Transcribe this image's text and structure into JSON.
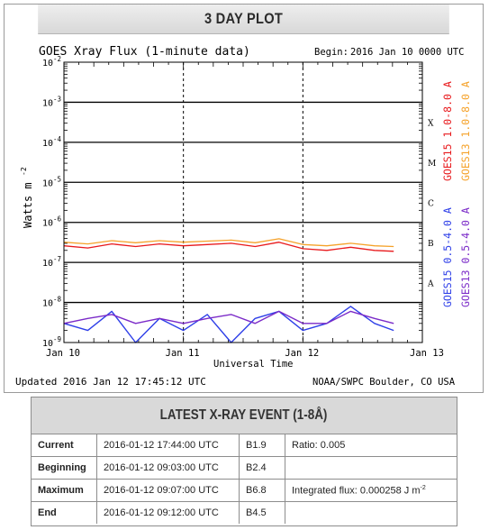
{
  "panel_title": "3 DAY PLOT",
  "plot": {
    "title": "GOES Xray Flux (1-minute data)",
    "begin_label": "Begin:",
    "begin_value": "2016 Jan 10 0000 UTC",
    "ylabel": "Watts m",
    "ylabel_exp": "-2",
    "xlabel": "Universal Time",
    "updated": "Updated 2016 Jan 12 17:45:12 UTC",
    "credit": "NOAA/SWPC Boulder, CO USA",
    "flare_classes": [
      "X",
      "M",
      "C",
      "B",
      "A"
    ],
    "colors": {
      "goes15_long": "#e8191c",
      "goes13_long": "#f5a22a",
      "goes15_short": "#2e3fe8",
      "goes13_short": "#7b2bc8",
      "axis": "#000000"
    }
  },
  "chart_data": {
    "type": "line",
    "title": "GOES Xray Flux (1-minute data)",
    "xlabel": "Universal Time",
    "ylabel": "Watts m-2",
    "yscale": "log",
    "ylim": [
      1e-09,
      0.01
    ],
    "y_ticks": [
      "10-9",
      "10-8",
      "10-7",
      "10-6",
      "10-5",
      "10-4",
      "10-3",
      "10-2"
    ],
    "x_ticks": [
      "Jan 10",
      "Jan 11",
      "Jan 12",
      "Jan 13"
    ],
    "x_range_days": [
      10,
      13
    ],
    "grid": true,
    "series": [
      {
        "name": "GOES15 1.0-8.0 A",
        "color": "#e8191c",
        "x": [
          10.0,
          10.2,
          10.4,
          10.6,
          10.8,
          11.0,
          11.2,
          11.4,
          11.6,
          11.8,
          12.0,
          12.2,
          12.4,
          12.6,
          12.76
        ],
        "y": [
          2.6e-07,
          2.3e-07,
          2.9e-07,
          2.5e-07,
          2.9e-07,
          2.6e-07,
          2.8e-07,
          3e-07,
          2.5e-07,
          3.2e-07,
          2.2e-07,
          2e-07,
          2.4e-07,
          2e-07,
          1.9e-07
        ]
      },
      {
        "name": "GOES13 1.0-8.0 A",
        "color": "#f5a22a",
        "x": [
          10.0,
          10.2,
          10.4,
          10.6,
          10.8,
          11.0,
          11.2,
          11.4,
          11.6,
          11.8,
          12.0,
          12.2,
          12.4,
          12.6,
          12.76
        ],
        "y": [
          3.2e-07,
          2.9e-07,
          3.5e-07,
          3.1e-07,
          3.5e-07,
          3.2e-07,
          3.4e-07,
          3.6e-07,
          3.1e-07,
          3.9e-07,
          2.8e-07,
          2.6e-07,
          3e-07,
          2.6e-07,
          2.5e-07
        ]
      },
      {
        "name": "GOES15 0.5-4.0 A",
        "color": "#2e3fe8",
        "x": [
          10.0,
          10.2,
          10.4,
          10.6,
          10.8,
          11.0,
          11.2,
          11.4,
          11.6,
          11.8,
          12.0,
          12.2,
          12.4,
          12.6,
          12.76
        ],
        "y": [
          3e-09,
          2e-09,
          6e-09,
          1e-09,
          4e-09,
          2e-09,
          5e-09,
          1e-09,
          4e-09,
          6e-09,
          2e-09,
          3e-09,
          8e-09,
          3e-09,
          2e-09
        ]
      },
      {
        "name": "GOES13 0.5-4.0 A",
        "color": "#7b2bc8",
        "x": [
          10.0,
          10.2,
          10.4,
          10.6,
          10.8,
          11.0,
          11.2,
          11.4,
          11.6,
          11.8,
          12.0,
          12.2,
          12.4,
          12.6,
          12.76
        ],
        "y": [
          3e-09,
          4e-09,
          5e-09,
          3e-09,
          4e-09,
          3e-09,
          4e-09,
          5e-09,
          3e-09,
          6e-09,
          3e-09,
          3e-09,
          6e-09,
          4e-09,
          3e-09
        ]
      }
    ]
  },
  "event": {
    "title": "LATEST X-RAY EVENT (1-8Å)",
    "rows": [
      {
        "label": "Current",
        "time": "2016-01-12 17:44:00 UTC",
        "class": "B1.9",
        "extra": "Ratio: 0.005",
        "extra_exp": ""
      },
      {
        "label": "Beginning",
        "time": "2016-01-12 09:03:00 UTC",
        "class": "B2.4",
        "extra": "",
        "extra_exp": ""
      },
      {
        "label": "Maximum",
        "time": "2016-01-12 09:07:00 UTC",
        "class": "B6.8",
        "extra": "Integrated flux: 0.000258 J m",
        "extra_exp": "-2"
      },
      {
        "label": "End",
        "time": "2016-01-12 09:12:00 UTC",
        "class": "B4.5",
        "extra": "",
        "extra_exp": ""
      }
    ]
  }
}
